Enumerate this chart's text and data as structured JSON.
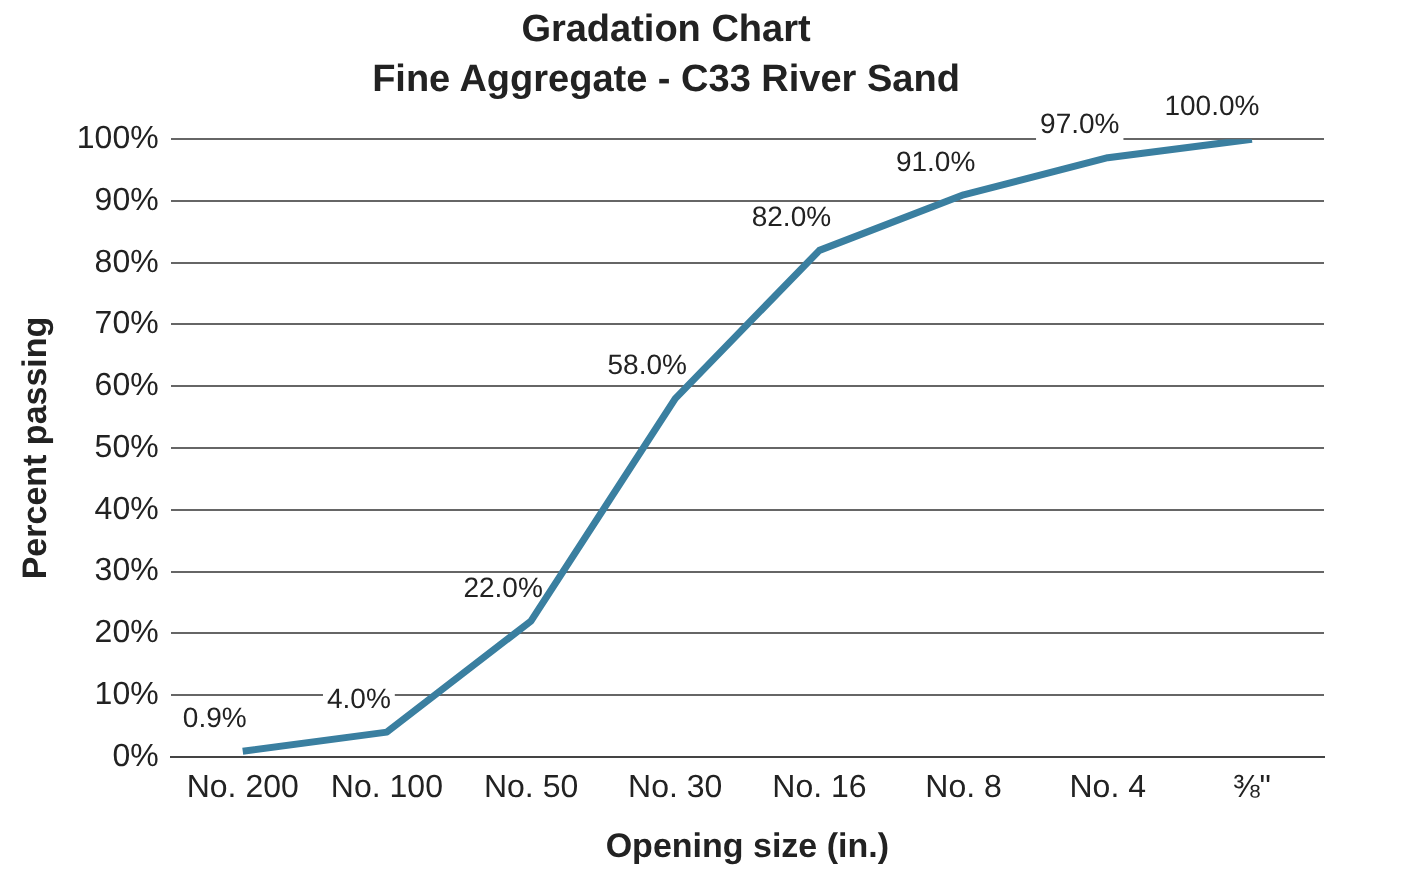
{
  "chart_data": {
    "type": "line",
    "title": "Gradation Chart",
    "subtitle": "Fine Aggregate - C33 River Sand",
    "xlabel": "Opening size (in.)",
    "ylabel": "Percent passing",
    "categories": [
      "No. 200",
      "No. 100",
      "No. 50",
      "No. 30",
      "No. 16",
      "No. 8",
      "No. 4",
      "⅜\""
    ],
    "series": [
      {
        "color": "#3a7fa0",
        "values": [
          0.9,
          4,
          22,
          58,
          82,
          91,
          97,
          100
        ],
        "value_labels": [
          "0.9%",
          "4.0%",
          "22.0%",
          "58.0%",
          "82.0%",
          "91.0%",
          "97.0%",
          "100.0%"
        ]
      }
    ],
    "ylim": [
      0,
      100
    ],
    "yticks": [
      {
        "value": 0,
        "label": "0%"
      },
      {
        "value": 10,
        "label": "10%"
      },
      {
        "value": 20,
        "label": "20%"
      },
      {
        "value": 30,
        "label": "30%"
      },
      {
        "value": 40,
        "label": "40%"
      },
      {
        "value": 50,
        "label": "50%"
      },
      {
        "value": 60,
        "label": "60%"
      },
      {
        "value": 70,
        "label": "70%"
      },
      {
        "value": 80,
        "label": "80%"
      },
      {
        "value": 90,
        "label": "90%"
      },
      {
        "value": 100,
        "label": "100%"
      }
    ],
    "grid": "y",
    "legend": false,
    "marker": "none",
    "line_style": "solid"
  }
}
